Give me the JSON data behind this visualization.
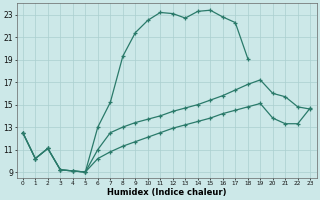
{
  "xlabel": "Humidex (Indice chaleur)",
  "bg_color": "#cce8e8",
  "line_color": "#2a7a6a",
  "grid_color": "#aacfcf",
  "xlim": [
    -0.5,
    23.5
  ],
  "ylim": [
    8.5,
    24.0
  ],
  "xticks": [
    0,
    1,
    2,
    3,
    4,
    5,
    6,
    7,
    8,
    9,
    10,
    11,
    12,
    13,
    14,
    15,
    16,
    17,
    18,
    19,
    20,
    21,
    22,
    23
  ],
  "yticks": [
    9,
    11,
    13,
    15,
    17,
    19,
    21,
    23
  ],
  "series": [
    {
      "x": [
        0,
        1,
        2,
        3,
        4,
        5,
        6,
        7,
        8,
        9,
        10,
        11,
        12,
        13,
        14,
        15,
        16,
        17,
        18
      ],
      "y": [
        12.5,
        10.2,
        11.1,
        9.2,
        9.1,
        9.0,
        13.0,
        15.2,
        19.3,
        21.4,
        22.5,
        23.2,
        23.1,
        22.7,
        23.3,
        23.4,
        22.8,
        22.3,
        19.1
      ]
    },
    {
      "x": [
        0,
        1,
        2,
        3,
        4,
        5,
        6,
        7,
        8,
        9,
        10,
        11,
        12,
        13,
        14,
        15,
        16,
        17,
        18,
        19,
        20,
        21,
        22,
        23
      ],
      "y": [
        12.5,
        10.2,
        11.1,
        9.2,
        9.1,
        9.0,
        11.0,
        12.5,
        13.0,
        13.4,
        13.7,
        14.0,
        14.4,
        14.7,
        15.0,
        15.4,
        15.8,
        16.3,
        16.8,
        17.2,
        16.0,
        15.7,
        14.8,
        14.6
      ]
    },
    {
      "x": [
        0,
        1,
        2,
        3,
        4,
        5,
        6,
        7,
        8,
        9,
        10,
        11,
        12,
        13,
        14,
        15,
        16,
        17,
        18,
        19,
        20,
        21,
        22,
        23
      ],
      "y": [
        12.5,
        10.2,
        11.1,
        9.2,
        9.1,
        9.0,
        10.2,
        10.8,
        11.3,
        11.7,
        12.1,
        12.5,
        12.9,
        13.2,
        13.5,
        13.8,
        14.2,
        14.5,
        14.8,
        15.1,
        13.8,
        13.3,
        13.3,
        14.7
      ]
    }
  ]
}
